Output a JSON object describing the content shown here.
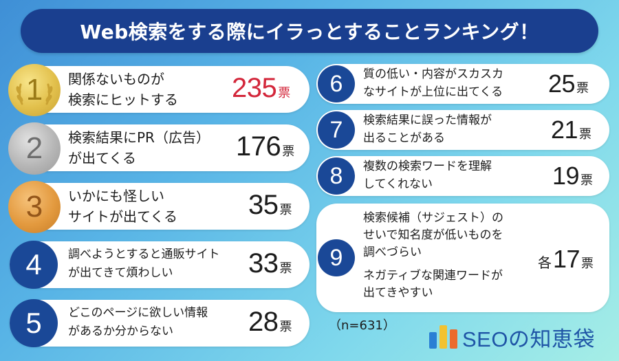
{
  "title": "Web検索をする際にイラっとすることランキング！",
  "unit": "票",
  "sample_size": "（n=631）",
  "brand": "SEOの知恵袋",
  "colors": {
    "title_bg": "#1a3f8f",
    "rank_badge": "#1a4897",
    "highlight_value": "#d3263a",
    "gold": "#e2c04c",
    "silver": "#b6b6b6",
    "bronze": "#e39a3f"
  },
  "chart_data": {
    "type": "table",
    "title": "Web検索をする際にイラっとすることランキング！",
    "rows": [
      {
        "rank": "1",
        "lines": [
          "関係ないものが",
          "検索にヒットする"
        ],
        "votes": "235"
      },
      {
        "rank": "2",
        "lines": [
          "検索結果にPR（広告）",
          "が出てくる"
        ],
        "votes": "176"
      },
      {
        "rank": "3",
        "lines": [
          "いかにも怪しい",
          "サイトが出てくる"
        ],
        "votes": "35"
      },
      {
        "rank": "4",
        "lines": [
          "調べようとすると通販サイト",
          "が出てきて煩わしい"
        ],
        "votes": "33"
      },
      {
        "rank": "5",
        "lines": [
          "どこのページに欲しい情報",
          "があるか分からない"
        ],
        "votes": "28"
      },
      {
        "rank": "6",
        "lines": [
          "質の低い・内容がスカスカ",
          "なサイトが上位に出てくる"
        ],
        "votes": "25"
      },
      {
        "rank": "7",
        "lines": [
          "検索結果に誤った情報が",
          "出ることがある"
        ],
        "votes": "21"
      },
      {
        "rank": "8",
        "lines": [
          "複数の検索ワードを理解",
          "してくれない"
        ],
        "votes": "19"
      },
      {
        "rank": "9",
        "lines": [
          "検索候補（サジェスト）の",
          "せいで知名度が低いものを",
          "調べづらい",
          "ネガティブな関連ワードが",
          "出てきやすい"
        ],
        "votes": "17",
        "prefix": "各"
      }
    ]
  }
}
